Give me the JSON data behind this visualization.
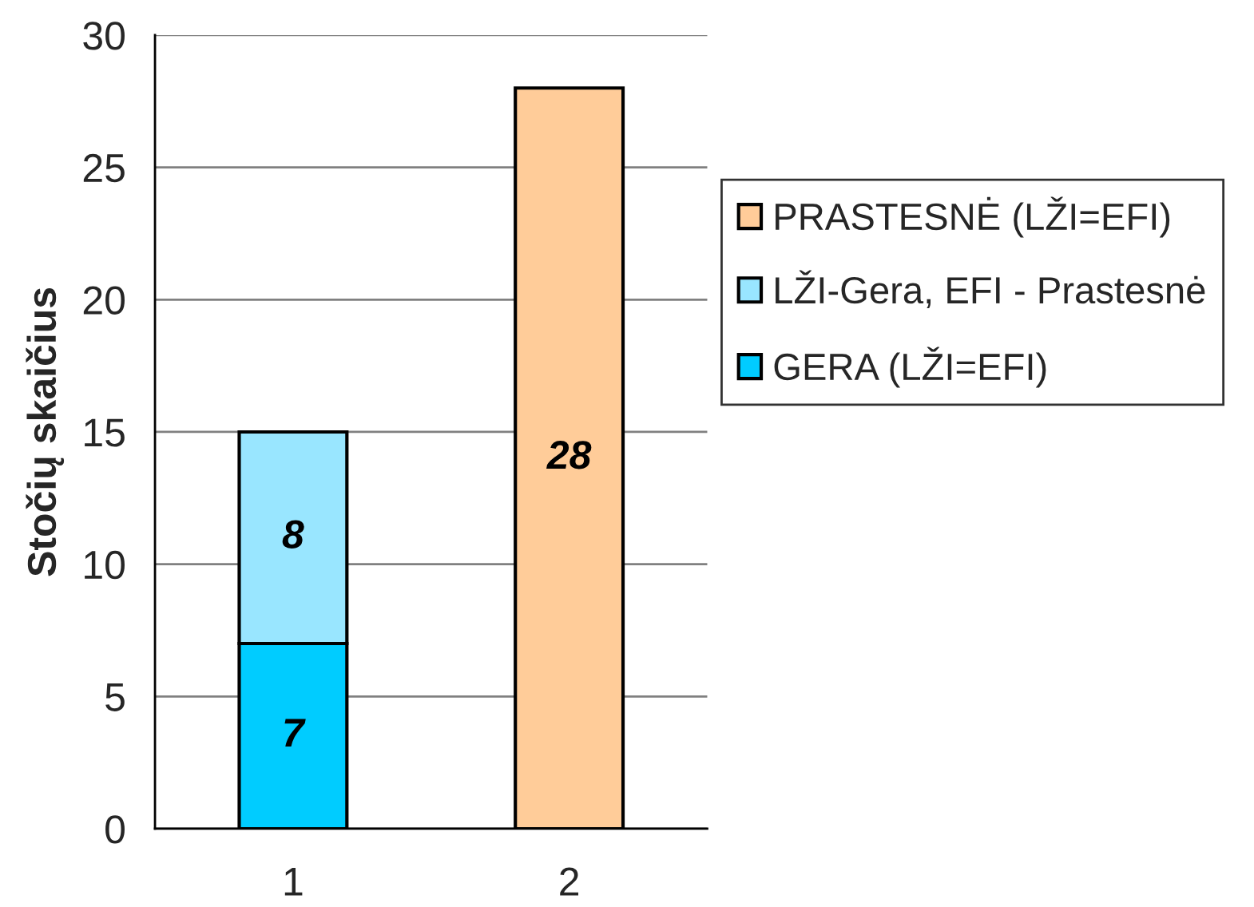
{
  "chart_data": {
    "type": "bar",
    "stacked": true,
    "ylabel": "Stočių skaičius",
    "categories": [
      "1",
      "2"
    ],
    "series": [
      {
        "name": "GERA (LŽI=EFI)",
        "color": "#00ccff",
        "values": [
          7,
          null
        ]
      },
      {
        "name": "LŽI-Gera, EFI - Prastesnė",
        "color": "#99e6ff",
        "values": [
          8,
          null
        ]
      },
      {
        "name": "PRASTESNĖ (LŽI=EFI)",
        "color": "#ffcc99",
        "values": [
          null,
          28
        ]
      }
    ],
    "ylim": [
      0,
      30
    ],
    "yticks": [
      0,
      5,
      10,
      15,
      20,
      25,
      30
    ],
    "grid": "y",
    "legend": "right",
    "data_labels": true
  }
}
